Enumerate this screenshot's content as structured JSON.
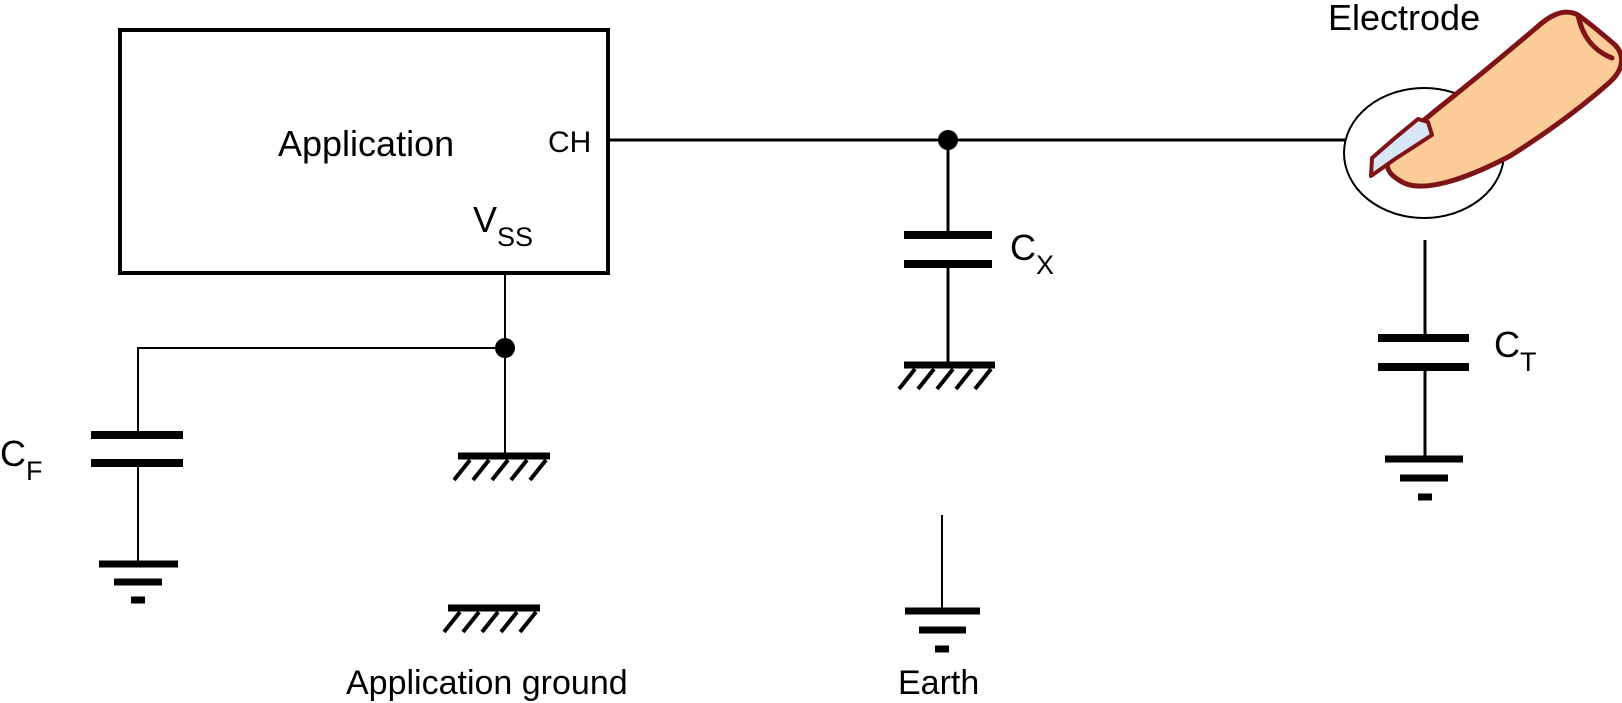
{
  "block": {
    "label": "Application",
    "pin_ch": "CH",
    "pin_vss_main": "V",
    "pin_vss_sub": "SS"
  },
  "electrode": {
    "label": "Electrode"
  },
  "capacitors": {
    "cx": {
      "main": "C",
      "sub": "X"
    },
    "ct": {
      "main": "C",
      "sub": "T"
    },
    "cf": {
      "main": "C",
      "sub": "F"
    }
  },
  "legend": {
    "app_ground": "Application ground",
    "earth": "Earth"
  },
  "colors": {
    "finger_fill": "#FBCB98",
    "finger_outline": "#7E1416",
    "fingernail": "#D6E6F4",
    "ink": "#000000"
  }
}
